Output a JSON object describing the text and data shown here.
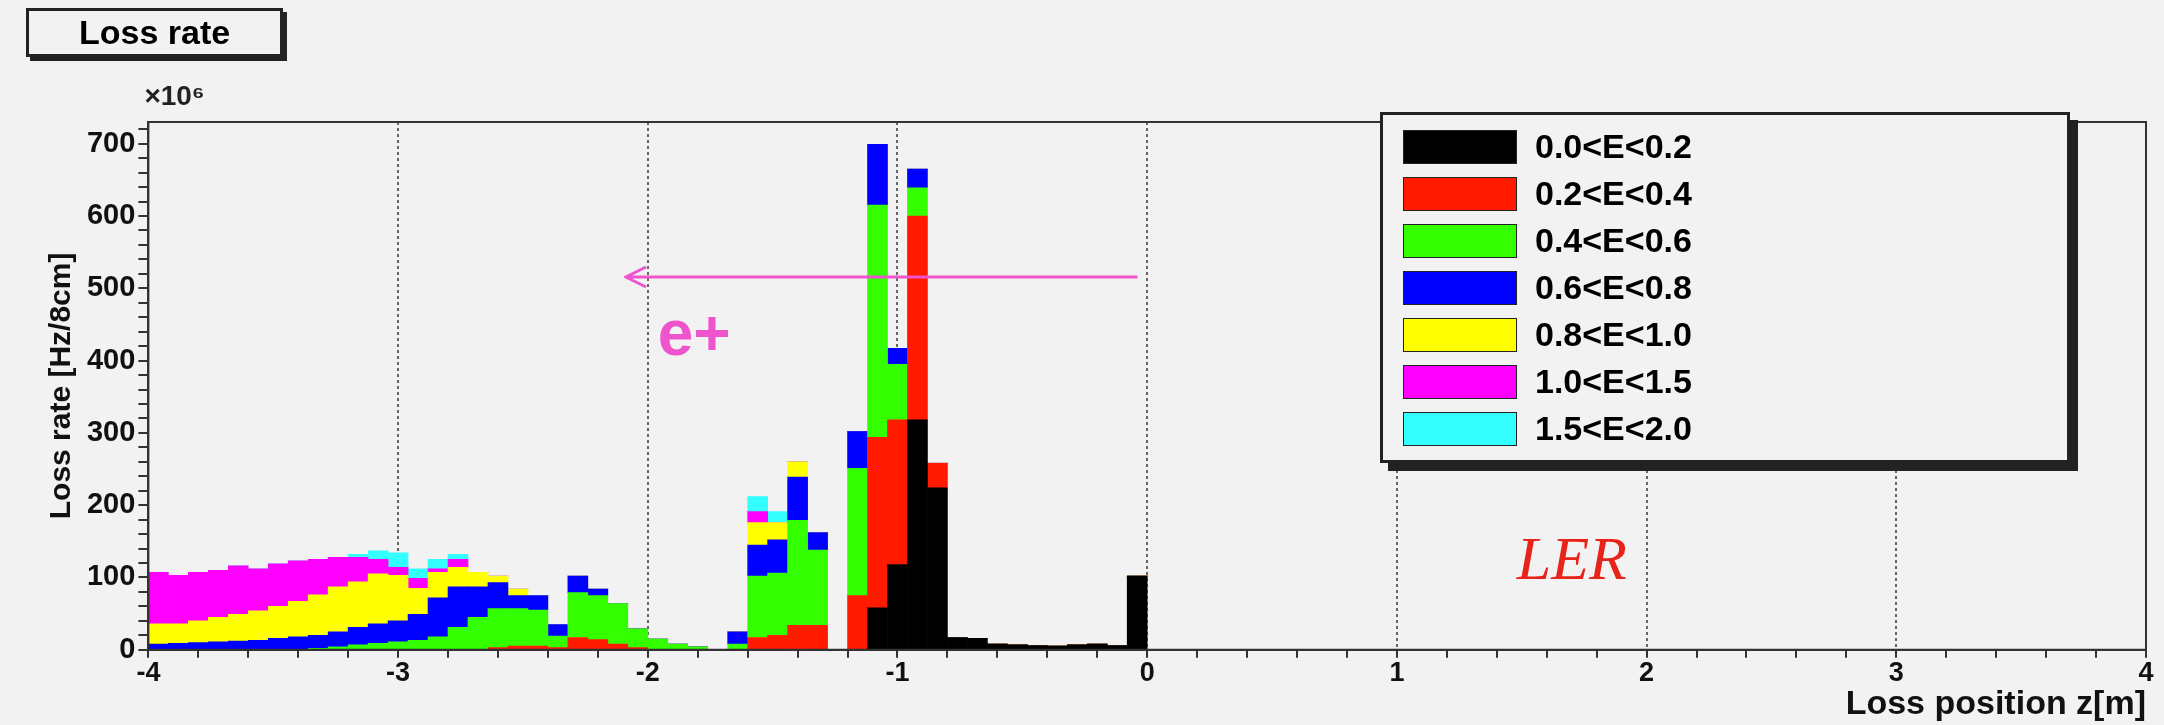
{
  "chart_data": {
    "type": "bar",
    "title": "Loss rate",
    "xlabel": "Loss position z[m]",
    "ylabel": "Loss rate [Hz/8cm]",
    "annotations": [
      "×10⁶",
      "e+",
      "LER"
    ],
    "x": [
      -3.96,
      -3.88,
      -3.8,
      -3.72,
      -3.64,
      -3.56,
      -3.48,
      -3.4,
      -3.32,
      -3.24,
      -3.16,
      -3.08,
      -3,
      -2.92,
      -2.84,
      -2.76,
      -2.68,
      -2.6,
      -2.52,
      -2.44,
      -2.36,
      -2.28,
      -2.2,
      -2.12,
      -2.04,
      -1.96,
      -1.88,
      -1.8,
      -1.72,
      -1.64,
      -1.56,
      -1.48,
      -1.4,
      -1.32,
      -1.24,
      -1.16,
      -1.08,
      -1,
      -0.92,
      -0.84,
      -0.76,
      -0.68,
      -0.6,
      -0.52,
      -0.44,
      -0.36,
      -0.28,
      -0.2,
      -0.12,
      -0.04
    ],
    "series": [
      {
        "name": "0.0<E<0.2",
        "color": "#000000",
        "values": [
          0,
          0,
          0,
          0,
          0,
          0,
          0,
          0,
          0,
          0,
          0,
          0,
          0,
          0,
          0,
          0,
          0,
          0,
          0,
          0,
          0,
          0,
          0,
          0,
          0,
          0,
          0,
          0,
          0,
          0,
          0,
          0,
          0,
          0,
          0,
          0,
          58,
          118,
          318,
          224,
          17,
          16,
          8,
          7,
          6,
          5,
          7,
          8,
          6,
          102
        ]
      },
      {
        "name": "0.2<E<0.4",
        "color": "#ff1a00",
        "values": [
          0,
          0,
          0,
          0,
          0,
          0,
          0,
          0,
          0,
          0,
          0,
          0,
          0,
          0,
          0,
          0,
          0,
          3,
          5,
          5,
          3,
          17,
          14,
          8,
          3,
          0,
          0,
          0,
          0,
          0,
          17,
          20,
          34,
          34,
          0,
          75,
          236,
          200,
          282,
          34,
          0,
          0,
          0,
          0,
          0,
          0,
          0,
          0,
          0,
          0
        ]
      },
      {
        "name": "0.4<E<0.6",
        "color": "#33ff00",
        "values": [
          0,
          0,
          0,
          0,
          0,
          0,
          0,
          0,
          2,
          4,
          7,
          9,
          11,
          13,
          18,
          31,
          45,
          54,
          52,
          50,
          16,
          62,
          61,
          56,
          26,
          15,
          8,
          4,
          0,
          8,
          85,
          86,
          145,
          104,
          0,
          176,
          321,
          77,
          39,
          0,
          0,
          0,
          0,
          0,
          0,
          0,
          0,
          0,
          0,
          0
        ]
      },
      {
        "name": "0.6<E<0.8",
        "color": "#0000ff",
        "values": [
          8,
          9,
          10,
          11,
          12,
          13,
          16,
          18,
          18,
          21,
          24,
          27,
          29,
          36,
          54,
          56,
          42,
          36,
          18,
          20,
          16,
          23,
          9,
          0,
          0,
          0,
          0,
          0,
          0,
          17,
          43,
          46,
          60,
          24,
          0,
          51,
          84,
          22,
          26,
          0,
          0,
          0,
          0,
          0,
          0,
          0,
          0,
          0,
          0,
          0
        ]
      },
      {
        "name": "0.8<E<1.0",
        "color": "#ffff00",
        "values": [
          28,
          27,
          30,
          34,
          37,
          41,
          44,
          49,
          56,
          62,
          63,
          69,
          63,
          36,
          35,
          27,
          20,
          9,
          9,
          0,
          0,
          0,
          0,
          0,
          0,
          0,
          0,
          0,
          0,
          0,
          31,
          24,
          21,
          0,
          0,
          0,
          0,
          0,
          0,
          0,
          0,
          0,
          0,
          0,
          0,
          0,
          0,
          0,
          0,
          0
        ]
      },
      {
        "name": "1.0<E<1.5",
        "color": "#ff00ff",
        "values": [
          71,
          67,
          67,
          65,
          67,
          58,
          59,
          56,
          49,
          41,
          34,
          20,
          11,
          14,
          5,
          11,
          0,
          0,
          0,
          0,
          0,
          0,
          0,
          0,
          0,
          0,
          0,
          0,
          0,
          0,
          15,
          0,
          0,
          0,
          0,
          0,
          0,
          0,
          0,
          0,
          0,
          0,
          0,
          0,
          0,
          0,
          0,
          0,
          0,
          0
        ]
      },
      {
        "name": "1.5<E<2.0",
        "color": "#33ffff",
        "values": [
          0,
          0,
          0,
          0,
          0,
          0,
          0,
          0,
          0,
          0,
          4,
          12,
          20,
          13,
          13,
          7,
          0,
          0,
          0,
          0,
          0,
          0,
          0,
          0,
          0,
          0,
          0,
          0,
          0,
          0,
          21,
          15,
          0,
          0,
          0,
          0,
          0,
          0,
          0,
          0,
          0,
          0,
          0,
          0,
          0,
          0,
          0,
          0,
          0,
          0
        ]
      }
    ],
    "stacked": true,
    "xlim": [
      -4,
      4
    ],
    "xticks": [
      -4,
      {
        "value": -3.8,
        "label": null
      },
      {
        "value": -3.6,
        "label": null
      },
      {
        "value": -3.4,
        "label": null
      },
      {
        "value": -3.2,
        "label": null
      },
      -3,
      {
        "value": -2.8,
        "label": null
      },
      {
        "value": -2.6,
        "label": null
      },
      {
        "value": -2.4,
        "label": null
      },
      {
        "value": -2.2,
        "label": null
      },
      -2,
      {
        "value": -1.8,
        "label": null
      },
      {
        "value": -1.6,
        "label": null
      },
      {
        "value": -1.4,
        "label": null
      },
      {
        "value": -1.2,
        "label": null
      },
      -1,
      {
        "value": -0.8,
        "label": null
      },
      {
        "value": -0.6,
        "label": null
      },
      {
        "value": -0.4,
        "label": null
      },
      {
        "value": -0.2,
        "label": null
      },
      0,
      {
        "value": 0.2,
        "label": null
      },
      {
        "value": 0.4,
        "label": null
      },
      {
        "value": 0.6,
        "label": null
      },
      {
        "value": 0.8,
        "label": null
      },
      1,
      {
        "value": 1.2,
        "label": null
      },
      {
        "value": 1.4,
        "label": null
      },
      {
        "value": 1.6,
        "label": null
      },
      {
        "value": 1.8,
        "label": null
      },
      2,
      {
        "value": 2.2,
        "label": null
      },
      {
        "value": 2.4,
        "label": null
      },
      {
        "value": 2.6,
        "label": null
      },
      {
        "value": 2.8,
        "label": null
      },
      3,
      {
        "value": 3.2,
        "label": null
      },
      {
        "value": 3.4,
        "label": null
      },
      {
        "value": 3.6,
        "label": null
      },
      {
        "value": 3.8,
        "label": null
      },
      4
    ],
    "ylim": [
      0,
      730
    ],
    "yticks": [
      0,
      {
        "value": 20,
        "label": null
      },
      {
        "value": 40,
        "label": null
      },
      {
        "value": 60,
        "label": null
      },
      {
        "value": 80,
        "label": null
      },
      100,
      {
        "value": 120,
        "label": null
      },
      {
        "value": 140,
        "label": null
      },
      {
        "value": 160,
        "label": null
      },
      {
        "value": 180,
        "label": null
      },
      200,
      {
        "value": 220,
        "label": null
      },
      {
        "value": 240,
        "label": null
      },
      {
        "value": 260,
        "label": null
      },
      {
        "value": 280,
        "label": null
      },
      300,
      {
        "value": 320,
        "label": null
      },
      {
        "value": 340,
        "label": null
      },
      {
        "value": 360,
        "label": null
      },
      {
        "value": 380,
        "label": null
      },
      400,
      {
        "value": 420,
        "label": null
      },
      {
        "value": 440,
        "label": null
      },
      {
        "value": 460,
        "label": null
      },
      {
        "value": 480,
        "label": null
      },
      500,
      {
        "value": 520,
        "label": null
      },
      {
        "value": 540,
        "label": null
      },
      {
        "value": 560,
        "label": null
      },
      {
        "value": 580,
        "label": null
      },
      600,
      {
        "value": 620,
        "label": null
      },
      {
        "value": 640,
        "label": null
      },
      {
        "value": 660,
        "label": null
      },
      {
        "value": 680,
        "label": null
      },
      700,
      {
        "value": 720,
        "label": null
      }
    ],
    "grid": "x",
    "legend": "top right"
  }
}
